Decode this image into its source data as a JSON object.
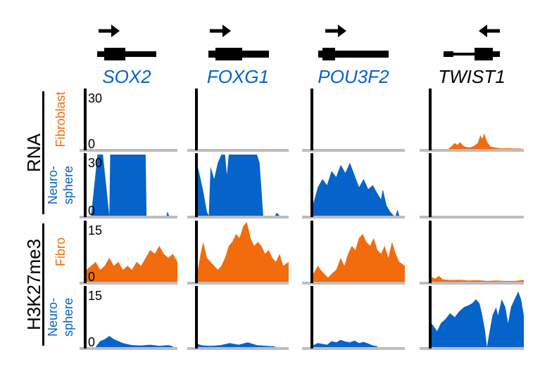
{
  "colors": {
    "fibroblast": "#f26c0d",
    "neurosphere": "#0563c9",
    "baseline": "#bdbdbd",
    "axis": "#000000",
    "gene_default": "#0563c9",
    "gene_highlight": "#000000"
  },
  "groups": [
    {
      "label": "RNA"
    },
    {
      "label": "H3K27me3"
    }
  ],
  "row_labels": [
    {
      "lines": [
        "Fibroblast"
      ],
      "color": "fibroblast"
    },
    {
      "lines": [
        "Neuro-",
        "sphere"
      ],
      "color": "neurosphere"
    },
    {
      "lines": [
        "Fibro"
      ],
      "color": "fibroblast"
    },
    {
      "lines": [
        "Neuro-",
        "sphere"
      ],
      "color": "neurosphere"
    }
  ],
  "chart_data": {
    "type": "area",
    "genes": [
      {
        "name": "SOX2",
        "strand": "+",
        "highlight": false
      },
      {
        "name": "FOXG1",
        "strand": "+",
        "highlight": false
      },
      {
        "name": "POU3F2",
        "strand": "+",
        "highlight": false
      },
      {
        "name": "TWIST1",
        "strand": "-",
        "highlight": true
      }
    ],
    "tracks": [
      {
        "assay": "RNA",
        "sample": "Fibroblast",
        "color_key": "fibroblast",
        "ylim": [
          0,
          30
        ],
        "ticks": [
          "30",
          "0"
        ]
      },
      {
        "assay": "RNA",
        "sample": "Neurosphere",
        "color_key": "neurosphere",
        "ylim": [
          0,
          30
        ],
        "ticks": [
          "30",
          "0"
        ]
      },
      {
        "assay": "H3K27me3",
        "sample": "Fibro",
        "color_key": "fibroblast",
        "ylim": [
          0,
          15
        ],
        "ticks": [
          "15",
          "0"
        ]
      },
      {
        "assay": "H3K27me3",
        "sample": "Neurosphere",
        "color_key": "neurosphere",
        "ylim": [
          0,
          15
        ],
        "ticks": [
          "15",
          "0"
        ]
      }
    ],
    "profiles": [
      [
        [
          [
            0,
            0
          ]
        ],
        [
          [
            0.05,
            0
          ],
          [
            0.12,
            30
          ],
          [
            0.18,
            30
          ],
          [
            0.25,
            0
          ],
          [
            0.26,
            30
          ],
          [
            0.65,
            30
          ],
          [
            0.66,
            0
          ],
          [
            0.88,
            0
          ],
          [
            0.89,
            2
          ],
          [
            0.91,
            0
          ]
        ],
        [
          [
            0.0,
            3
          ],
          [
            0.05,
            4
          ],
          [
            0.1,
            5
          ],
          [
            0.15,
            3
          ],
          [
            0.2,
            4
          ],
          [
            0.25,
            6
          ],
          [
            0.3,
            4
          ],
          [
            0.35,
            5
          ],
          [
            0.4,
            3
          ],
          [
            0.45,
            4
          ],
          [
            0.5,
            3
          ],
          [
            0.55,
            5
          ],
          [
            0.6,
            4
          ],
          [
            0.65,
            6
          ],
          [
            0.7,
            8
          ],
          [
            0.75,
            7
          ],
          [
            0.8,
            9
          ],
          [
            0.85,
            7
          ],
          [
            0.9,
            6
          ],
          [
            0.95,
            7
          ],
          [
            1.0,
            5
          ]
        ],
        [
          [
            0.1,
            0
          ],
          [
            0.15,
            1.5
          ],
          [
            0.2,
            2
          ],
          [
            0.25,
            2.8
          ],
          [
            0.3,
            2
          ],
          [
            0.35,
            1.5
          ],
          [
            0.4,
            1
          ],
          [
            0.5,
            0.5
          ],
          [
            0.6,
            0.4
          ],
          [
            0.7,
            0.6
          ],
          [
            0.8,
            0.3
          ],
          [
            0.9,
            0.5
          ],
          [
            0.95,
            0.2
          ]
        ]
      ],
      [
        [
          [
            0,
            0
          ]
        ],
        [
          [
            0.0,
            24
          ],
          [
            0.03,
            18
          ],
          [
            0.06,
            12
          ],
          [
            0.1,
            2
          ],
          [
            0.12,
            0
          ],
          [
            0.14,
            24
          ],
          [
            0.18,
            18
          ],
          [
            0.22,
            26
          ],
          [
            0.26,
            30
          ],
          [
            0.3,
            30
          ],
          [
            0.32,
            20
          ],
          [
            0.34,
            30
          ],
          [
            0.65,
            30
          ],
          [
            0.68,
            26
          ],
          [
            0.72,
            0
          ],
          [
            0.85,
            0
          ],
          [
            0.87,
            1.5
          ],
          [
            0.9,
            0
          ]
        ],
        [
          [
            0.0,
            3
          ],
          [
            0.03,
            7
          ],
          [
            0.06,
            10
          ],
          [
            0.1,
            6
          ],
          [
            0.14,
            5
          ],
          [
            0.18,
            4
          ],
          [
            0.22,
            3
          ],
          [
            0.26,
            4
          ],
          [
            0.3,
            6
          ],
          [
            0.34,
            9
          ],
          [
            0.38,
            10
          ],
          [
            0.42,
            12
          ],
          [
            0.46,
            11
          ],
          [
            0.5,
            14
          ],
          [
            0.54,
            15
          ],
          [
            0.58,
            11
          ],
          [
            0.62,
            9
          ],
          [
            0.66,
            10
          ],
          [
            0.7,
            9
          ],
          [
            0.74,
            7
          ],
          [
            0.78,
            8
          ],
          [
            0.82,
            6
          ],
          [
            0.86,
            5
          ],
          [
            0.9,
            7
          ],
          [
            0.94,
            4
          ],
          [
            1.0,
            5
          ]
        ],
        [
          [
            0.0,
            0.8
          ],
          [
            0.05,
            0.4
          ],
          [
            0.15,
            0.3
          ],
          [
            0.25,
            0.5
          ],
          [
            0.35,
            1
          ],
          [
            0.45,
            0.6
          ],
          [
            0.55,
            1.2
          ],
          [
            0.65,
            0.5
          ],
          [
            0.75,
            0.3
          ],
          [
            0.85,
            0.2
          ]
        ]
      ],
      [
        [
          [
            0,
            0
          ]
        ],
        [
          [
            0.0,
            6
          ],
          [
            0.05,
            14
          ],
          [
            0.1,
            18
          ],
          [
            0.15,
            15
          ],
          [
            0.2,
            22
          ],
          [
            0.25,
            19
          ],
          [
            0.3,
            25
          ],
          [
            0.35,
            21
          ],
          [
            0.4,
            26
          ],
          [
            0.45,
            20
          ],
          [
            0.5,
            14
          ],
          [
            0.55,
            18
          ],
          [
            0.6,
            13
          ],
          [
            0.65,
            15
          ],
          [
            0.7,
            11
          ],
          [
            0.74,
            8
          ],
          [
            0.76,
            13
          ],
          [
            0.78,
            9
          ],
          [
            0.8,
            5
          ],
          [
            0.84,
            2
          ],
          [
            0.88,
            0
          ],
          [
            0.9,
            0
          ],
          [
            0.92,
            3
          ],
          [
            0.94,
            0
          ]
        ],
        [
          [
            0.0,
            2
          ],
          [
            0.05,
            4
          ],
          [
            0.08,
            3
          ],
          [
            0.12,
            2
          ],
          [
            0.16,
            1
          ],
          [
            0.2,
            2
          ],
          [
            0.25,
            3
          ],
          [
            0.3,
            6
          ],
          [
            0.34,
            4
          ],
          [
            0.38,
            7
          ],
          [
            0.42,
            9
          ],
          [
            0.46,
            8
          ],
          [
            0.5,
            11
          ],
          [
            0.54,
            12
          ],
          [
            0.58,
            10
          ],
          [
            0.62,
            9
          ],
          [
            0.66,
            11
          ],
          [
            0.7,
            8
          ],
          [
            0.74,
            7
          ],
          [
            0.78,
            9
          ],
          [
            0.82,
            6
          ],
          [
            0.86,
            10
          ],
          [
            0.9,
            7
          ],
          [
            0.94,
            5
          ],
          [
            1.0,
            4
          ]
        ],
        [
          [
            0.0,
            0.5
          ],
          [
            0.05,
            1
          ],
          [
            0.1,
            0.8
          ],
          [
            0.15,
            0.6
          ],
          [
            0.2,
            1.5
          ],
          [
            0.25,
            1.2
          ],
          [
            0.3,
            1.8
          ],
          [
            0.35,
            1.4
          ],
          [
            0.4,
            1.2
          ],
          [
            0.45,
            1.6
          ],
          [
            0.5,
            1
          ],
          [
            0.55,
            1.3
          ],
          [
            0.6,
            0.9
          ],
          [
            0.65,
            0.4
          ],
          [
            0.7,
            0.2
          ]
        ]
      ],
      [
        [
          [
            0.18,
            0
          ],
          [
            0.22,
            1.5
          ],
          [
            0.25,
            3
          ],
          [
            0.28,
            2
          ],
          [
            0.31,
            3.5
          ],
          [
            0.34,
            1.8
          ],
          [
            0.37,
            1
          ],
          [
            0.42,
            0.8
          ],
          [
            0.46,
            1.5
          ],
          [
            0.5,
            3
          ],
          [
            0.53,
            7
          ],
          [
            0.55,
            5
          ],
          [
            0.57,
            8
          ],
          [
            0.59,
            5
          ],
          [
            0.61,
            3
          ],
          [
            0.64,
            1.2
          ],
          [
            0.7,
            0.6
          ],
          [
            0.76,
            0.3
          ],
          [
            0.82,
            0.4
          ],
          [
            0.88,
            0.2
          ],
          [
            0.94,
            0.3
          ],
          [
            1.0,
            0
          ]
        ],
        [
          [
            0,
            0
          ]
        ],
        [
          [
            0.0,
            1.2
          ],
          [
            0.04,
            0.8
          ],
          [
            0.08,
            1.5
          ],
          [
            0.12,
            0.6
          ],
          [
            0.2,
            0.4
          ],
          [
            0.3,
            0.5
          ],
          [
            0.4,
            0.3
          ],
          [
            0.5,
            0.4
          ],
          [
            0.6,
            0.2
          ],
          [
            0.7,
            0.3
          ],
          [
            0.8,
            0.2
          ],
          [
            0.9,
            0.2
          ],
          [
            1.0,
            0.5
          ]
        ],
        [
          [
            0.0,
            6
          ],
          [
            0.03,
            5
          ],
          [
            0.06,
            4
          ],
          [
            0.1,
            6
          ],
          [
            0.15,
            7
          ],
          [
            0.2,
            8.5
          ],
          [
            0.25,
            7.5
          ],
          [
            0.3,
            9
          ],
          [
            0.35,
            10
          ],
          [
            0.4,
            10.5
          ],
          [
            0.44,
            11
          ],
          [
            0.48,
            12
          ],
          [
            0.52,
            11
          ],
          [
            0.55,
            8
          ],
          [
            0.58,
            4
          ],
          [
            0.6,
            0
          ],
          [
            0.63,
            4
          ],
          [
            0.66,
            8
          ],
          [
            0.7,
            10
          ],
          [
            0.72,
            8
          ],
          [
            0.76,
            12
          ],
          [
            0.8,
            10
          ],
          [
            0.83,
            6
          ],
          [
            0.86,
            10
          ],
          [
            0.9,
            12
          ],
          [
            0.94,
            14
          ],
          [
            0.97,
            12
          ],
          [
            1.0,
            8
          ]
        ]
      ]
    ]
  }
}
